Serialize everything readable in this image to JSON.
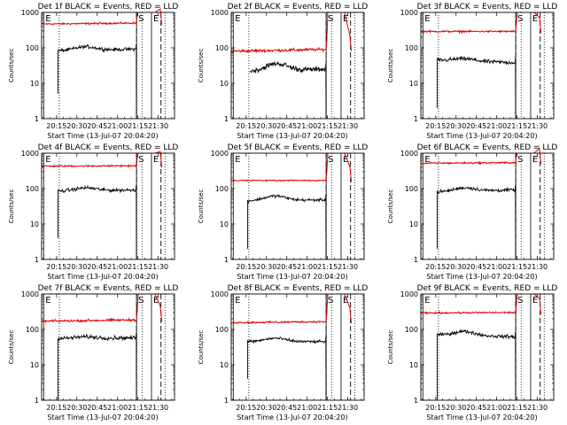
{
  "chart_data": {
    "type": "line",
    "colors": {
      "events": "#000000",
      "lld": "#e00000",
      "axes": "#000000"
    },
    "x_tick_labels": [
      "20:15",
      "20:30",
      "20:45",
      "21:00",
      "21:15",
      "21:30"
    ],
    "x_ticks_minutes": [
      11,
      26,
      41,
      56,
      71,
      86
    ],
    "xlim_minutes": [
      0,
      98
    ],
    "xlabel": "Start Time (13-Jul-07 20:04:20)",
    "ylabel": "Counts/sec",
    "yscale": "log",
    "ylim": [
      1,
      1000
    ],
    "y_tick_labels": [
      "1",
      "10",
      "100",
      "1000"
    ],
    "region_markers": [
      {
        "label": "E",
        "minute": 1.5,
        "style": "solid"
      },
      {
        "label": "S",
        "minute": 70,
        "style": "solid"
      },
      {
        "label": "E",
        "minute": 81,
        "style": "solid"
      }
    ],
    "dotted_lines_minutes": [
      13,
      74,
      91
    ],
    "panels": [
      {
        "title": "Det 1f BLACK = Events, RED = LLD",
        "events": {
          "start": 12,
          "spike_min": 5,
          "level": 82,
          "bump": 1.25,
          "end_level": 92,
          "noise": 0.06
        },
        "lld": {
          "start": 0,
          "level": 470,
          "end_level": 500,
          "noise": 0.03
        },
        "gap": [
          70,
          82
        ],
        "late_dash": 88
      },
      {
        "title": "Det 2f BLACK = Events, RED = LLD",
        "events": {
          "start": 14,
          "spike_min": 0,
          "level": 22,
          "bump": 1.55,
          "end_level": 25,
          "noise": 0.09
        },
        "lld": {
          "start": 0,
          "level": 80,
          "end_level": 90,
          "noise": 0.05
        },
        "gap": [
          70,
          82
        ],
        "late_dash": 88
      },
      {
        "title": "Det 3f BLACK = Events, RED = LLD",
        "events": {
          "start": 12,
          "spike_min": 2,
          "level": 45,
          "bump": 1.15,
          "end_level": 38,
          "noise": 0.07
        },
        "lld": {
          "start": 0,
          "level": 290,
          "end_level": 290,
          "noise": 0.03
        },
        "gap": [
          70,
          82
        ],
        "late_dash": 88
      },
      {
        "title": "Det 4f BLACK = Events, RED = LLD",
        "events": {
          "start": 12,
          "spike_min": 4,
          "level": 85,
          "bump": 1.2,
          "end_level": 92,
          "noise": 0.06
        },
        "lld": {
          "start": 0,
          "level": 430,
          "end_level": 440,
          "noise": 0.03
        },
        "gap": [
          70,
          82
        ],
        "late_dash": 88
      },
      {
        "title": "Det 5f BLACK = Events, RED = LLD",
        "events": {
          "start": 12,
          "spike_min": 2,
          "level": 45,
          "bump": 1.35,
          "end_level": 48,
          "noise": 0.05
        },
        "lld": {
          "start": 0,
          "level": 170,
          "end_level": 170,
          "noise": 0.02
        },
        "gap": [
          70,
          82
        ],
        "late_dash": 88
      },
      {
        "title": "Det 6f BLACK = Events, RED = LLD",
        "events": {
          "start": 12,
          "spike_min": 2,
          "level": 80,
          "bump": 1.25,
          "end_level": 92,
          "noise": 0.06
        },
        "lld": {
          "start": 0,
          "level": 520,
          "end_level": 540,
          "noise": 0.03
        },
        "gap": [
          70,
          82
        ],
        "late_dash": 88
      },
      {
        "title": "Det 7f BLACK = Events, RED = LLD",
        "events": {
          "start": 12,
          "spike_min": 1,
          "level": 55,
          "bump": 1.1,
          "end_level": 58,
          "noise": 0.07
        },
        "lld": {
          "start": 0,
          "level": 170,
          "end_level": 185,
          "noise": 0.04
        },
        "gap": [
          70,
          82
        ],
        "late_dash": 88
      },
      {
        "title": "Det 8f BLACK = Events, RED = LLD",
        "events": {
          "start": 12,
          "spike_min": 4,
          "level": 45,
          "bump": 1.25,
          "end_level": 45,
          "noise": 0.05
        },
        "lld": {
          "start": 0,
          "level": 155,
          "end_level": 165,
          "noise": 0.03
        },
        "gap": [
          70,
          82
        ],
        "late_dash": 88
      },
      {
        "title": "Det 9f BLACK = Events, RED = LLD",
        "events": {
          "start": 12,
          "spike_min": 1,
          "level": 70,
          "bump": 1.3,
          "end_level": 62,
          "noise": 0.06
        },
        "lld": {
          "start": 0,
          "level": 290,
          "end_level": 300,
          "noise": 0.03
        },
        "gap": [
          70,
          82
        ],
        "late_dash": 88
      }
    ]
  }
}
